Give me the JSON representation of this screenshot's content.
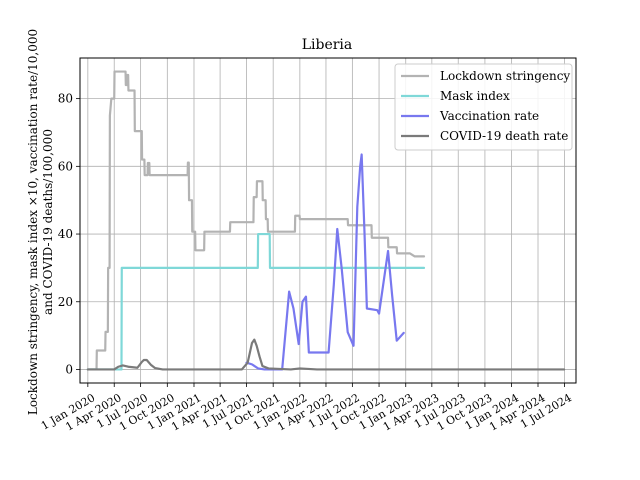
{
  "chart_data": {
    "type": "line",
    "title": "Liberia",
    "ylabel_line1": "Lockdown stringency, mask index ×10, vaccination rate/10,000",
    "ylabel_line2": "and COVID-19 deaths/100,000",
    "xlabel": "",
    "xlim": [
      "2019-12-05",
      "2024-08-10"
    ],
    "ylim": [
      -4,
      92
    ],
    "grid": true,
    "legend_position": "top-right",
    "x_ticks": [
      {
        "date": "2020-01-01",
        "label": "1 Jan 2020"
      },
      {
        "date": "2020-04-01",
        "label": "1 Apr 2020"
      },
      {
        "date": "2020-07-01",
        "label": "1 Jul 2020"
      },
      {
        "date": "2020-10-01",
        "label": "1 Oct 2020"
      },
      {
        "date": "2021-01-01",
        "label": "1 Jan 2021"
      },
      {
        "date": "2021-04-01",
        "label": "1 Apr 2021"
      },
      {
        "date": "2021-07-01",
        "label": "1 Jul 2021"
      },
      {
        "date": "2021-10-01",
        "label": "1 Oct 2021"
      },
      {
        "date": "2022-01-01",
        "label": "1 Jan 2022"
      },
      {
        "date": "2022-04-01",
        "label": "1 Apr 2022"
      },
      {
        "date": "2022-07-01",
        "label": "1 Jul 2022"
      },
      {
        "date": "2022-10-01",
        "label": "1 Oct 2022"
      },
      {
        "date": "2023-01-01",
        "label": "1 Jan 2023"
      },
      {
        "date": "2023-04-01",
        "label": "1 Apr 2023"
      },
      {
        "date": "2023-07-01",
        "label": "1 Jul 2023"
      },
      {
        "date": "2023-10-01",
        "label": "1 Oct 2023"
      },
      {
        "date": "2024-01-01",
        "label": "1 Jan 2024"
      },
      {
        "date": "2024-04-01",
        "label": "1 Apr 2024"
      },
      {
        "date": "2024-07-01",
        "label": "1 Jul 2024"
      }
    ],
    "y_ticks": [
      0,
      20,
      40,
      60,
      80
    ],
    "series": [
      {
        "name": "Lockdown stringency",
        "color": "#b3b3b3",
        "points": [
          [
            "2020-01-01",
            0
          ],
          [
            "2020-01-31",
            0
          ],
          [
            "2020-02-01",
            5.6
          ],
          [
            "2020-03-01",
            5.6
          ],
          [
            "2020-03-02",
            11.1
          ],
          [
            "2020-03-10",
            11.1
          ],
          [
            "2020-03-11",
            30
          ],
          [
            "2020-03-16",
            30
          ],
          [
            "2020-03-17",
            75
          ],
          [
            "2020-03-22",
            80
          ],
          [
            "2020-04-01",
            80
          ],
          [
            "2020-04-02",
            88
          ],
          [
            "2020-05-10",
            88
          ],
          [
            "2020-05-11",
            84
          ],
          [
            "2020-05-15",
            84
          ],
          [
            "2020-05-16",
            87
          ],
          [
            "2020-05-19",
            87
          ],
          [
            "2020-05-20",
            82.4
          ],
          [
            "2020-06-10",
            82.4
          ],
          [
            "2020-06-11",
            70.4
          ],
          [
            "2020-07-05",
            70.4
          ],
          [
            "2020-07-06",
            62
          ],
          [
            "2020-07-14",
            62
          ],
          [
            "2020-07-15",
            57.4
          ],
          [
            "2020-07-25",
            57.4
          ],
          [
            "2020-07-26",
            61
          ],
          [
            "2020-07-31",
            61
          ],
          [
            "2020-08-01",
            57.4
          ],
          [
            "2020-12-10",
            57.4
          ],
          [
            "2020-12-11",
            61.1
          ],
          [
            "2020-12-14",
            61.1
          ],
          [
            "2020-12-15",
            50
          ],
          [
            "2020-12-25",
            50
          ],
          [
            "2020-12-26",
            40.7
          ],
          [
            "2021-01-05",
            40.7
          ],
          [
            "2021-01-06",
            35.2
          ],
          [
            "2021-02-05",
            35.2
          ],
          [
            "2021-02-06",
            40.7
          ],
          [
            "2021-05-05",
            40.7
          ],
          [
            "2021-05-06",
            43.5
          ],
          [
            "2021-07-25",
            43.5
          ],
          [
            "2021-07-26",
            50.9
          ],
          [
            "2021-08-05",
            50.9
          ],
          [
            "2021-08-06",
            55.6
          ],
          [
            "2021-08-25",
            55.6
          ],
          [
            "2021-08-26",
            50
          ],
          [
            "2021-09-05",
            50
          ],
          [
            "2021-09-06",
            44.4
          ],
          [
            "2021-09-12",
            44.4
          ],
          [
            "2021-09-13",
            40.7
          ],
          [
            "2021-12-15",
            40.7
          ],
          [
            "2021-12-16",
            45.4
          ],
          [
            "2021-12-31",
            45.4
          ],
          [
            "2022-01-01",
            44.4
          ],
          [
            "2022-06-15",
            44.4
          ],
          [
            "2022-06-16",
            42.6
          ],
          [
            "2022-09-05",
            42.6
          ],
          [
            "2022-09-06",
            38.9
          ],
          [
            "2022-10-01",
            38.9
          ],
          [
            "2022-11-01",
            38.9
          ],
          [
            "2022-11-02",
            36.1
          ],
          [
            "2022-12-01",
            36.1
          ],
          [
            "2022-12-02",
            34.3
          ],
          [
            "2023-01-15",
            34.3
          ],
          [
            "2023-02-01",
            33.4
          ],
          [
            "2023-03-05",
            33.4
          ]
        ]
      },
      {
        "name": "Mask index",
        "color": "#7fd8d8",
        "points": [
          [
            "2020-01-01",
            0
          ],
          [
            "2020-04-26",
            0
          ],
          [
            "2020-04-27",
            30
          ],
          [
            "2021-08-09",
            30
          ],
          [
            "2021-08-10",
            40
          ],
          [
            "2021-09-19",
            40
          ],
          [
            "2021-09-20",
            30
          ],
          [
            "2023-03-05",
            30
          ]
        ]
      },
      {
        "name": "Vaccination rate",
        "color": "#7878ef",
        "points": [
          [
            "2021-07-01",
            2
          ],
          [
            "2021-07-20",
            1.5
          ],
          [
            "2021-08-10",
            0.3
          ],
          [
            "2021-09-01",
            0
          ],
          [
            "2021-11-01",
            0
          ],
          [
            "2021-11-25",
            23
          ],
          [
            "2021-12-10",
            18
          ],
          [
            "2021-12-28",
            7.5
          ],
          [
            "2022-01-10",
            20
          ],
          [
            "2022-01-22",
            21.5
          ],
          [
            "2022-02-01",
            5
          ],
          [
            "2022-04-10",
            5
          ],
          [
            "2022-04-28",
            25
          ],
          [
            "2022-05-10",
            41.5
          ],
          [
            "2022-05-25",
            30
          ],
          [
            "2022-06-15",
            11
          ],
          [
            "2022-07-05",
            7
          ],
          [
            "2022-07-18",
            48
          ],
          [
            "2022-07-28",
            60
          ],
          [
            "2022-08-02",
            63.5
          ],
          [
            "2022-08-12",
            40
          ],
          [
            "2022-08-20",
            18
          ],
          [
            "2022-09-25",
            17.5
          ],
          [
            "2022-10-01",
            16.5
          ],
          [
            "2022-11-01",
            35
          ],
          [
            "2022-11-15",
            22
          ],
          [
            "2022-12-01",
            8.5
          ],
          [
            "2022-12-25",
            10.8
          ]
        ]
      },
      {
        "name": "COVID-19 death rate",
        "color": "#7a7a7a",
        "points": [
          [
            "2020-01-01",
            0
          ],
          [
            "2020-04-01",
            0
          ],
          [
            "2020-04-15",
            0.8
          ],
          [
            "2020-05-01",
            1.2
          ],
          [
            "2020-05-20",
            0.8
          ],
          [
            "2020-06-20",
            0.5
          ],
          [
            "2020-07-05",
            2.2
          ],
          [
            "2020-07-12",
            2.8
          ],
          [
            "2020-07-22",
            2.8
          ],
          [
            "2020-08-05",
            1.4
          ],
          [
            "2020-08-20",
            0.4
          ],
          [
            "2020-09-15",
            0
          ],
          [
            "2021-06-15",
            0
          ],
          [
            "2021-07-05",
            2
          ],
          [
            "2021-07-20",
            7.8
          ],
          [
            "2021-07-28",
            8.8
          ],
          [
            "2021-08-05",
            7
          ],
          [
            "2021-08-15",
            3.8
          ],
          [
            "2021-08-25",
            1
          ],
          [
            "2021-09-15",
            0.3
          ],
          [
            "2021-12-01",
            0
          ],
          [
            "2022-01-01",
            0.3
          ],
          [
            "2022-03-01",
            0
          ],
          [
            "2024-06-30",
            0
          ]
        ]
      }
    ]
  }
}
